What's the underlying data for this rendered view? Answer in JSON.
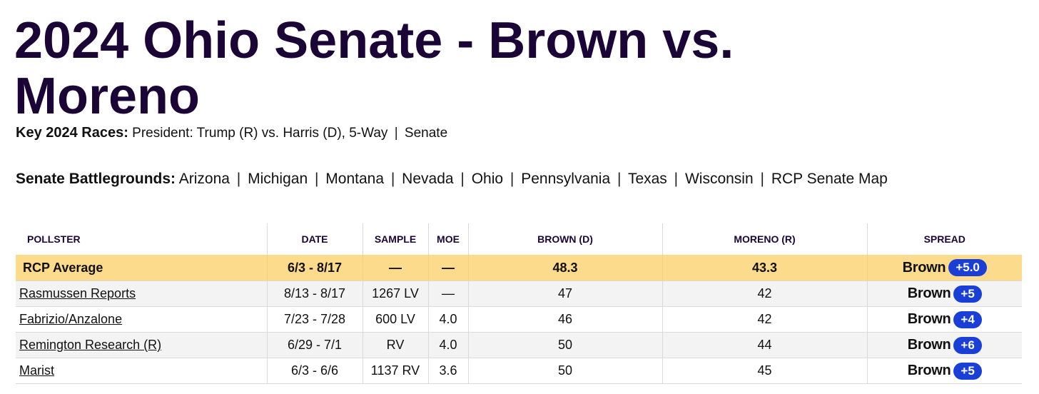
{
  "page_title": "2024 Ohio Senate - Brown vs. Moreno",
  "key_races": {
    "label": "Key 2024 Races:",
    "links": [
      "President: Trump (R) vs. Harris (D)",
      "5-Way",
      "Senate"
    ]
  },
  "battlegrounds": {
    "label": "Senate Battlegrounds:",
    "links": [
      "Arizona",
      "Michigan",
      "Montana",
      "Nevada",
      "Ohio",
      "Pennsylvania",
      "Texas",
      "Wisconsin",
      "RCP Senate Map"
    ]
  },
  "table": {
    "headers": {
      "pollster": "POLLSTER",
      "date": "DATE",
      "sample": "SAMPLE",
      "moe": "MOE",
      "brown": "BROWN (D)",
      "moreno": "MORENO (R)",
      "spread": "SPREAD"
    },
    "average": {
      "pollster": "RCP Average",
      "date": "6/3 - 8/17",
      "sample": "—",
      "moe": "—",
      "brown": "48.3",
      "moreno": "43.3",
      "spread_name": "Brown",
      "spread_value": "+5.0"
    },
    "rows": [
      {
        "pollster": "Rasmussen Reports",
        "date": "8/13 - 8/17",
        "sample": "1267 LV",
        "moe": "—",
        "brown": "47",
        "moreno": "42",
        "spread_name": "Brown",
        "spread_value": "+5"
      },
      {
        "pollster": "Fabrizio/Anzalone",
        "date": "7/23 - 7/28",
        "sample": "600 LV",
        "moe": "4.0",
        "brown": "46",
        "moreno": "42",
        "spread_name": "Brown",
        "spread_value": "+4"
      },
      {
        "pollster": "Remington Research (R)",
        "date": "6/29 - 7/1",
        "sample": "RV",
        "moe": "4.0",
        "brown": "50",
        "moreno": "44",
        "spread_name": "Brown",
        "spread_value": "+6"
      },
      {
        "pollster": "Marist",
        "date": "6/3 - 6/6",
        "sample": "1137 RV",
        "moe": "3.6",
        "brown": "50",
        "moreno": "45",
        "spread_name": "Brown",
        "spread_value": "+5"
      }
    ]
  },
  "colors": {
    "title": "#1b0536",
    "average_row": "#fcdc8c",
    "alt_row": "#f3f3f3",
    "spread_badge": "#1a3fd6"
  }
}
